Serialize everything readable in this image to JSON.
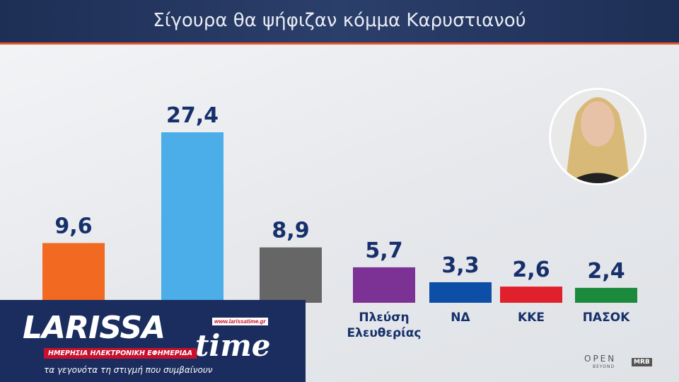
{
  "chart_data": {
    "type": "bar",
    "title": "Σίγουρα θα ψήφιζαν κόμμα Καρυστιανού",
    "categories": [
      null,
      null,
      null,
      "Πλεύση Ελευθερίας",
      "ΝΔ",
      "ΚΚΕ",
      "ΠΑΣΟΚ"
    ],
    "values": [
      9.6,
      27.4,
      8.9,
      5.7,
      3.3,
      2.6,
      2.4
    ],
    "value_labels": [
      "9,6",
      "27,4",
      "8,9",
      "5,7",
      "3,3",
      "2,6",
      "2,4"
    ],
    "colors": [
      "#f26a21",
      "#4baee8",
      "#666666",
      "#7b3294",
      "#0d4ea6",
      "#e0202a",
      "#1b8a3c"
    ]
  },
  "logo": {
    "name_left": "LARISSA",
    "name_right": "time",
    "url": "www.larissatime.gr",
    "tagline": "ΗΜΕΡΗΣΙΑ ΗΛΕΚΤΡΟΝΙΚΗ ΕΦΗΜΕΡΙΔΑ",
    "slogan": "τα γεγονότα τη στιγμή που συμβαίνουν"
  },
  "broadcaster": {
    "channel": "OPEN",
    "channel_sub": "BEYOND",
    "pollster": "MRB"
  }
}
